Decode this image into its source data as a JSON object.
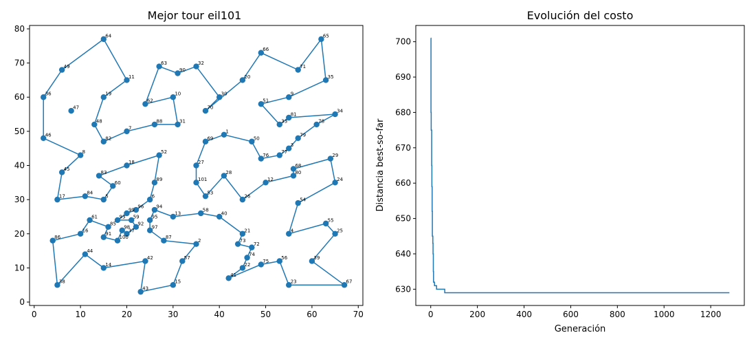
{
  "chart_data": [
    {
      "type": "scatter",
      "title": "Mejor tour eil101",
      "xlabel": "",
      "ylabel": "",
      "xlim": [
        -1,
        71
      ],
      "ylim": [
        -1,
        81
      ],
      "xticks": [
        0,
        10,
        20,
        30,
        40,
        50,
        60,
        70
      ],
      "yticks": [
        0,
        10,
        20,
        30,
        40,
        50,
        60,
        70,
        80
      ],
      "color": "#1f77b4",
      "points": [
        {
          "id": 1,
          "x": 41,
          "y": 49
        },
        {
          "id": 2,
          "x": 35,
          "y": 17
        },
        {
          "id": 3,
          "x": 55,
          "y": 45
        },
        {
          "id": 4,
          "x": 55,
          "y": 20
        },
        {
          "id": 5,
          "x": 15,
          "y": 30
        },
        {
          "id": 6,
          "x": 25,
          "y": 30
        },
        {
          "id": 7,
          "x": 20,
          "y": 50
        },
        {
          "id": 8,
          "x": 10,
          "y": 43
        },
        {
          "id": 9,
          "x": 55,
          "y": 60
        },
        {
          "id": 10,
          "x": 30,
          "y": 60
        },
        {
          "id": 11,
          "x": 20,
          "y": 65
        },
        {
          "id": 12,
          "x": 50,
          "y": 35
        },
        {
          "id": 13,
          "x": 30,
          "y": 25
        },
        {
          "id": 14,
          "x": 15,
          "y": 10
        },
        {
          "id": 15,
          "x": 30,
          "y": 5
        },
        {
          "id": 16,
          "x": 10,
          "y": 20
        },
        {
          "id": 17,
          "x": 5,
          "y": 30
        },
        {
          "id": 18,
          "x": 20,
          "y": 40
        },
        {
          "id": 19,
          "x": 15,
          "y": 60
        },
        {
          "id": 20,
          "x": 45,
          "y": 65
        },
        {
          "id": 21,
          "x": 45,
          "y": 20
        },
        {
          "id": 22,
          "x": 45,
          "y": 10
        },
        {
          "id": 23,
          "x": 55,
          "y": 5
        },
        {
          "id": 24,
          "x": 65,
          "y": 35
        },
        {
          "id": 25,
          "x": 65,
          "y": 20
        },
        {
          "id": 26,
          "x": 45,
          "y": 30
        },
        {
          "id": 27,
          "x": 35,
          "y": 40
        },
        {
          "id": 28,
          "x": 41,
          "y": 37
        },
        {
          "id": 29,
          "x": 64,
          "y": 42
        },
        {
          "id": 30,
          "x": 40,
          "y": 60
        },
        {
          "id": 31,
          "x": 31,
          "y": 52
        },
        {
          "id": 32,
          "x": 35,
          "y": 69
        },
        {
          "id": 33,
          "x": 53,
          "y": 52
        },
        {
          "id": 34,
          "x": 65,
          "y": 55
        },
        {
          "id": 35,
          "x": 63,
          "y": 65
        },
        {
          "id": 36,
          "x": 2,
          "y": 60
        },
        {
          "id": 37,
          "x": 20,
          "y": 20
        },
        {
          "id": 38,
          "x": 5,
          "y": 5
        },
        {
          "id": 39,
          "x": 60,
          "y": 12
        },
        {
          "id": 40,
          "x": 40,
          "y": 25
        },
        {
          "id": 41,
          "x": 42,
          "y": 7
        },
        {
          "id": 42,
          "x": 24,
          "y": 12
        },
        {
          "id": 43,
          "x": 23,
          "y": 3
        },
        {
          "id": 44,
          "x": 11,
          "y": 14
        },
        {
          "id": 45,
          "x": 6,
          "y": 38
        },
        {
          "id": 46,
          "x": 2,
          "y": 48
        },
        {
          "id": 47,
          "x": 8,
          "y": 56
        },
        {
          "id": 48,
          "x": 13,
          "y": 52
        },
        {
          "id": 49,
          "x": 6,
          "y": 68
        },
        {
          "id": 50,
          "x": 47,
          "y": 47
        },
        {
          "id": 51,
          "x": 49,
          "y": 58
        },
        {
          "id": 52,
          "x": 27,
          "y": 43
        },
        {
          "id": 53,
          "x": 37,
          "y": 31
        },
        {
          "id": 54,
          "x": 57,
          "y": 29
        },
        {
          "id": 55,
          "x": 63,
          "y": 23
        },
        {
          "id": 56,
          "x": 53,
          "y": 12
        },
        {
          "id": 57,
          "x": 32,
          "y": 12
        },
        {
          "id": 58,
          "x": 36,
          "y": 26
        },
        {
          "id": 59,
          "x": 21,
          "y": 24
        },
        {
          "id": 60,
          "x": 17,
          "y": 34
        },
        {
          "id": 61,
          "x": 12,
          "y": 24
        },
        {
          "id": 62,
          "x": 24,
          "y": 58
        },
        {
          "id": 63,
          "x": 27,
          "y": 69
        },
        {
          "id": 64,
          "x": 15,
          "y": 77
        },
        {
          "id": 65,
          "x": 62,
          "y": 77
        },
        {
          "id": 66,
          "x": 49,
          "y": 73
        },
        {
          "id": 67,
          "x": 67,
          "y": 5
        },
        {
          "id": 68,
          "x": 56,
          "y": 39
        },
        {
          "id": 69,
          "x": 37,
          "y": 47
        },
        {
          "id": 70,
          "x": 37,
          "y": 56
        },
        {
          "id": 71,
          "x": 57,
          "y": 68
        },
        {
          "id": 72,
          "x": 47,
          "y": 16
        },
        {
          "id": 73,
          "x": 44,
          "y": 17
        },
        {
          "id": 74,
          "x": 46,
          "y": 13
        },
        {
          "id": 75,
          "x": 49,
          "y": 11
        },
        {
          "id": 76,
          "x": 49,
          "y": 42
        },
        {
          "id": 77,
          "x": 53,
          "y": 43
        },
        {
          "id": 78,
          "x": 61,
          "y": 52
        },
        {
          "id": 79,
          "x": 57,
          "y": 48
        },
        {
          "id": 80,
          "x": 56,
          "y": 37
        },
        {
          "id": 81,
          "x": 55,
          "y": 54
        },
        {
          "id": 82,
          "x": 15,
          "y": 47
        },
        {
          "id": 83,
          "x": 14,
          "y": 37
        },
        {
          "id": 84,
          "x": 11,
          "y": 31
        },
        {
          "id": 85,
          "x": 16,
          "y": 22
        },
        {
          "id": 86,
          "x": 4,
          "y": 18
        },
        {
          "id": 87,
          "x": 28,
          "y": 18
        },
        {
          "id": 88,
          "x": 26,
          "y": 52
        },
        {
          "id": 89,
          "x": 26,
          "y": 35
        },
        {
          "id": 90,
          "x": 31,
          "y": 67
        },
        {
          "id": 91,
          "x": 15,
          "y": 19
        },
        {
          "id": 92,
          "x": 22,
          "y": 22
        },
        {
          "id": 93,
          "x": 18,
          "y": 24
        },
        {
          "id": 94,
          "x": 26,
          "y": 27
        },
        {
          "id": 95,
          "x": 25,
          "y": 24
        },
        {
          "id": 96,
          "x": 22,
          "y": 27
        },
        {
          "id": 97,
          "x": 25,
          "y": 21
        },
        {
          "id": 98,
          "x": 19,
          "y": 21
        },
        {
          "id": 99,
          "x": 20,
          "y": 26
        },
        {
          "id": 100,
          "x": 18,
          "y": 18
        },
        {
          "id": 101,
          "x": 35,
          "y": 35
        }
      ],
      "tour": [
        1,
        69,
        27,
        101,
        53,
        28,
        26,
        12,
        80,
        68,
        29,
        24,
        54,
        4,
        55,
        25,
        39,
        67,
        23,
        56,
        75,
        41,
        22,
        74,
        72,
        73,
        21,
        40,
        58,
        13,
        94,
        95,
        97,
        87,
        2,
        57,
        15,
        43,
        42,
        14,
        44,
        38,
        86,
        16,
        61,
        85,
        91,
        100,
        98,
        37,
        92,
        59,
        93,
        99,
        96,
        6,
        89,
        52,
        18,
        83,
        60,
        5,
        84,
        17,
        45,
        8,
        46,
        36,
        49,
        64,
        11,
        19,
        48,
        82,
        7,
        88,
        31,
        10,
        62,
        63,
        90,
        32,
        30,
        70,
        20,
        66,
        71,
        65,
        35,
        9,
        51,
        33,
        81,
        34,
        78,
        79,
        3,
        77,
        76,
        50,
        1
      ]
    },
    {
      "type": "line",
      "title": "Evolución del costo",
      "xlabel": "Generación",
      "ylabel": "Distancia best-so-far",
      "xlim": [
        -64,
        1344
      ],
      "ylim": [
        625.4,
        704.6
      ],
      "xticks": [
        0,
        200,
        400,
        600,
        800,
        1000,
        1200
      ],
      "yticks": [
        630,
        640,
        650,
        660,
        670,
        680,
        690,
        700
      ],
      "color": "#1f77b4",
      "x": [
        0,
        1,
        2,
        3,
        4,
        5,
        6,
        7,
        8,
        9,
        10,
        11,
        12,
        13,
        15,
        16,
        17,
        20,
        25,
        30,
        35,
        50,
        55,
        60,
        62,
        1280
      ],
      "y": [
        701,
        680,
        675,
        675,
        665,
        659,
        652,
        645,
        645,
        643,
        640,
        635,
        632,
        632,
        632,
        631,
        631,
        631,
        630,
        630,
        630,
        630,
        630,
        629,
        629,
        629
      ]
    }
  ]
}
